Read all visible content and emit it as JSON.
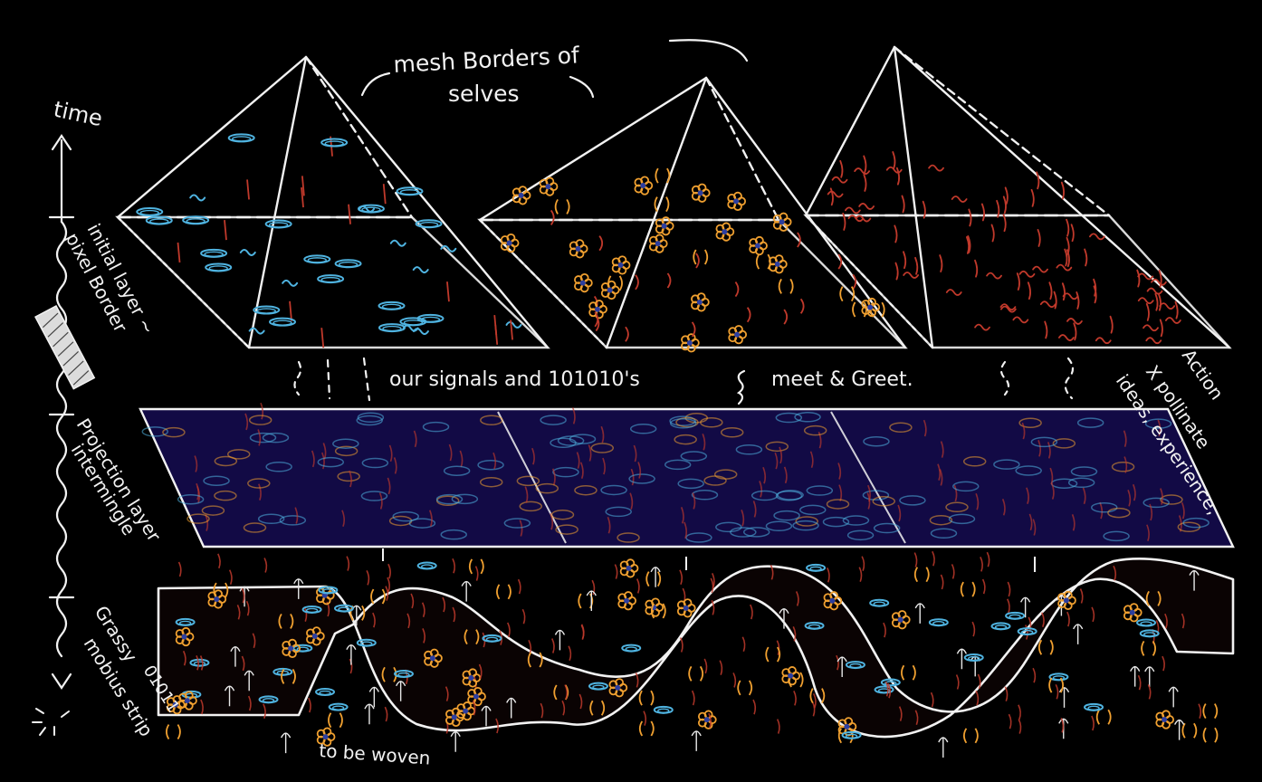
{
  "colors": {
    "background": "#000000",
    "chalk": "#f2f2f2",
    "blue": "#4fb3e0",
    "orange": "#f0a030",
    "red": "#c0392b",
    "deep_blue": "#1a1060",
    "navy_dot": "#2c3ea0"
  },
  "labels": {
    "mesh_borders": "mesh Borders of selves",
    "time": "time",
    "initial_layer": "initial layer ~",
    "pixel_border": "pixel Border",
    "signals": "our signals and 101010's",
    "meet_greet": "meet & Greet.",
    "projection_layer": "Projection layer",
    "intermingle": "intermingle",
    "grassy": "Grassy",
    "mobius_strip": "mobius strip",
    "binary_01011": "01011",
    "to_be_woven": "to be woven",
    "action": "Action",
    "x_pollinate": "X pollinate",
    "ideas_experience": "ideas, experience,"
  },
  "pyramids": [
    {
      "name": "pyramid-blue",
      "pattern": "blue"
    },
    {
      "name": "pyramid-orange",
      "pattern": "orange"
    },
    {
      "name": "pyramid-red",
      "pattern": "red"
    }
  ]
}
